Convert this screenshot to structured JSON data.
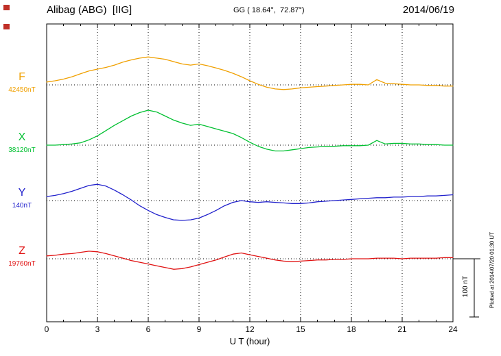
{
  "header": {
    "station": "Alibag (ABG)  [IIG]",
    "coords": "GG ( 18.64°,  72.87°)",
    "date": "2014/06/19"
  },
  "footer": {
    "xlabel": "U T (hour)"
  },
  "scale_bar": {
    "label": "100 nT",
    "nT": 100
  },
  "plotted_at": "Plotted at 2014/07/20 01:30 UT",
  "decorations": {
    "marker_color": "#c03028"
  },
  "chart_data": {
    "type": "line",
    "title": "Alibag (ABG) [IIG] magnetogram 2014/06/19",
    "xlabel": "U T (hour)",
    "ylabel": "",
    "x_range": [
      0,
      24
    ],
    "x_ticks": [
      0,
      3,
      6,
      9,
      12,
      15,
      18,
      21,
      24
    ],
    "x_step_hours": 0.5,
    "grid": "dotted vertical at 3h ticks, dotted baseline per component",
    "legend_position": "left margin component labels",
    "series": [
      {
        "name": "F",
        "baseline_label": "42450nT",
        "baseline_nT": 42450,
        "color": "#f0a000",
        "deviations_nT": [
          5,
          7,
          10,
          14,
          19,
          24,
          27,
          30,
          34,
          39,
          43,
          46,
          48,
          46,
          44,
          40,
          36,
          34,
          36,
          33,
          29,
          25,
          20,
          14,
          7,
          1,
          -4,
          -7,
          -8,
          -7,
          -5,
          -4,
          -3,
          -2,
          -1,
          0,
          1,
          1,
          0,
          9,
          3,
          2,
          1,
          0,
          0,
          -1,
          -1,
          -2,
          -2
        ]
      },
      {
        "name": "X",
        "baseline_label": "38120nT",
        "baseline_nT": 38120,
        "color": "#00c030",
        "deviations_nT": [
          0,
          0,
          1,
          2,
          4,
          9,
          16,
          25,
          34,
          42,
          50,
          56,
          60,
          57,
          50,
          43,
          38,
          34,
          36,
          32,
          28,
          24,
          20,
          13,
          5,
          -2,
          -7,
          -10,
          -10,
          -8,
          -6,
          -4,
          -3,
          -2,
          -2,
          -1,
          -1,
          -1,
          0,
          8,
          2,
          3,
          3,
          2,
          2,
          1,
          1,
          0,
          0
        ]
      },
      {
        "name": "Y",
        "baseline_label": "140nT",
        "baseline_nT": 140,
        "color": "#2020cc",
        "deviations_nT": [
          7,
          9,
          12,
          16,
          21,
          26,
          28,
          25,
          18,
          10,
          1,
          -9,
          -17,
          -24,
          -29,
          -33,
          -34,
          -33,
          -30,
          -24,
          -17,
          -9,
          -3,
          0,
          -2,
          -3,
          -2,
          -3,
          -4,
          -5,
          -5,
          -4,
          -2,
          -1,
          0,
          1,
          2,
          3,
          4,
          5,
          5,
          6,
          6,
          7,
          7,
          8,
          8,
          9,
          10
        ]
      },
      {
        "name": "Z",
        "baseline_label": "19760nT",
        "baseline_nT": 19760,
        "color": "#e01010",
        "deviations_nT": [
          5,
          6,
          8,
          9,
          11,
          13,
          12,
          9,
          5,
          1,
          -3,
          -6,
          -9,
          -12,
          -15,
          -18,
          -17,
          -14,
          -10,
          -6,
          -2,
          3,
          8,
          10,
          7,
          4,
          1,
          -2,
          -4,
          -5,
          -4,
          -3,
          -2,
          -2,
          -1,
          -1,
          0,
          0,
          0,
          1,
          1,
          1,
          0,
          1,
          1,
          1,
          1,
          2,
          2
        ]
      }
    ]
  }
}
